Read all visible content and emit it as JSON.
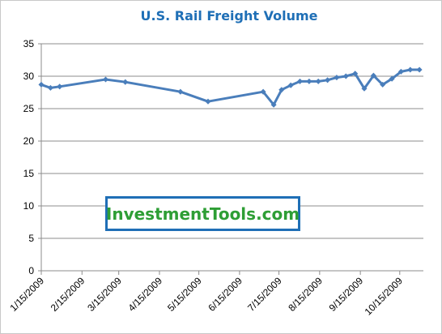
{
  "colors": {
    "title": "#1f6fb6",
    "series": "#4a7ebb",
    "gridline": "#8c8c8c",
    "axis": "#8c8c8c",
    "watermark_text": "#2e9e35",
    "watermark_border": "#1f6fb6"
  },
  "watermark": {
    "text": "InvestmentTools.com"
  },
  "chart_data": {
    "type": "line",
    "title": "U.S. Rail Freight Volume",
    "xlabel": "",
    "ylabel": "",
    "ylim": [
      0,
      35
    ],
    "yticks": [
      0,
      5,
      10,
      15,
      20,
      25,
      30,
      35
    ],
    "grid": "horizontal",
    "legend": "none",
    "xtick_dates": [
      "2009-01-15",
      "2009-02-15",
      "2009-03-15",
      "2009-04-15",
      "2009-05-15",
      "2009-06-15",
      "2009-07-15",
      "2009-08-15",
      "2009-09-15",
      "2009-10-15"
    ],
    "xtick_labels": [
      "1/15/2009",
      "2/15/2009",
      "3/15/2009",
      "4/15/2009",
      "5/15/2009",
      "6/15/2009",
      "7/15/2009",
      "8/15/2009",
      "9/15/2009",
      "10/15/2009"
    ],
    "xlim": [
      "2009-01-15",
      "2009-11-02"
    ],
    "series": [
      {
        "x": [
          "2009-01-15",
          "2009-01-22",
          "2009-01-29",
          "2009-03-05",
          "2009-03-20",
          "2009-05-01",
          "2009-05-22",
          "2009-07-03",
          "2009-07-11",
          "2009-07-17",
          "2009-07-24",
          "2009-07-31",
          "2009-08-07",
          "2009-08-14",
          "2009-08-21",
          "2009-08-28",
          "2009-09-04",
          "2009-09-11",
          "2009-09-18",
          "2009-09-25",
          "2009-10-02",
          "2009-10-09",
          "2009-10-16",
          "2009-10-23",
          "2009-10-30"
        ],
        "values": [
          28.7,
          28.2,
          28.4,
          29.5,
          29.1,
          27.6,
          26.1,
          27.6,
          25.6,
          27.9,
          28.6,
          29.2,
          29.2,
          29.2,
          29.4,
          29.8,
          30.0,
          30.4,
          28.1,
          30.1,
          28.7,
          29.6,
          30.7,
          31.0,
          31.0
        ]
      }
    ]
  }
}
